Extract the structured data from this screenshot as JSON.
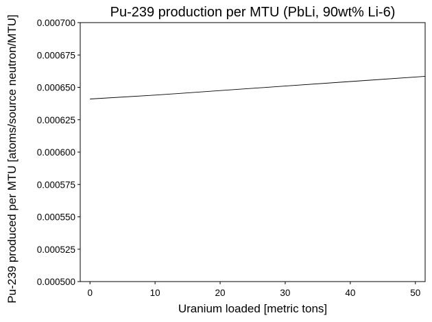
{
  "chart_data": {
    "type": "line",
    "title": "Pu-239 production per MTU (PbLi, 90wt% Li-6)",
    "xlabel": "Uranium loaded [metric tons]",
    "ylabel": "Pu-239 produced per MTU [atoms/source neutron/MTU]",
    "xlim": [
      -1.5,
      51.5
    ],
    "ylim": [
      0.0005,
      0.0007
    ],
    "xticks": [
      0,
      10,
      20,
      30,
      40,
      50
    ],
    "xtick_labels": [
      "0",
      "10",
      "20",
      "30",
      "40",
      "50"
    ],
    "yticks": [
      0.0005,
      0.000525,
      0.00055,
      0.000575,
      0.0006,
      0.000625,
      0.00065,
      0.000675,
      0.0007
    ],
    "ytick_labels": [
      "0.000500",
      "0.000525",
      "0.000550",
      "0.000575",
      "0.000600",
      "0.000625",
      "0.000650",
      "0.000675",
      "0.000700"
    ],
    "grid": false,
    "series": [
      {
        "color": "#000000",
        "x": [
          0,
          10,
          20,
          30,
          40,
          51.5
        ],
        "y": [
          0.000641,
          0.000644,
          0.0006475,
          0.000651,
          0.0006545,
          0.0006585
        ]
      }
    ]
  }
}
